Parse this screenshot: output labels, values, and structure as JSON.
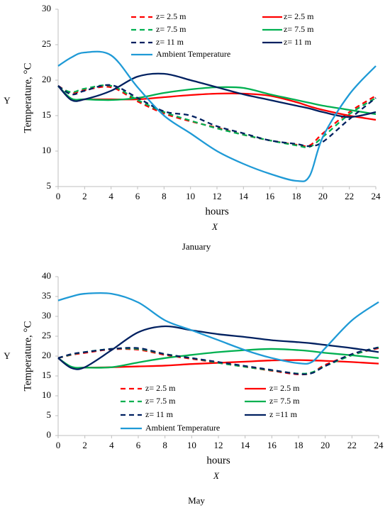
{
  "chart_data": [
    {
      "type": "line",
      "title": "January",
      "x_label": "hours",
      "y_label": "Temperature, °C",
      "x_axis_name": "X",
      "y_axis_name": "Y",
      "x": [
        0,
        1,
        2,
        4,
        6,
        8,
        10,
        12,
        14,
        16,
        18,
        19,
        20,
        22,
        24
      ],
      "xlim": [
        0,
        24
      ],
      "xticks": [
        0,
        2,
        4,
        6,
        8,
        10,
        12,
        14,
        16,
        18,
        20,
        22,
        24
      ],
      "ylim": [
        5,
        30
      ],
      "yticks": [
        5,
        10,
        15,
        20,
        25,
        30
      ],
      "grid": false,
      "legend": "top",
      "series": [
        {
          "name": "z= 2.5 m",
          "color": "#ff0000",
          "dashed": true,
          "values": [
            19.2,
            18.2,
            18.6,
            19,
            17,
            15.3,
            14.2,
            13.3,
            12.3,
            11.5,
            10.9,
            10.8,
            12.5,
            15.5,
            17.8
          ]
        },
        {
          "name": "z= 2.5 m",
          "color": "#ff0000",
          "dashed": false,
          "values": [
            19.2,
            17.3,
            17.3,
            17.3,
            17.3,
            17.6,
            17.9,
            18.1,
            18.1,
            17.8,
            16.9,
            16.3,
            15.8,
            15,
            14.4
          ]
        },
        {
          "name": "z= 7.5 m",
          "color": "#00b050",
          "dashed": true,
          "values": [
            19.1,
            18.3,
            18.8,
            19.2,
            17.2,
            15.5,
            14.3,
            13.2,
            12.3,
            11.5,
            10.8,
            10.6,
            12,
            15.2,
            17.5
          ]
        },
        {
          "name": "z= 7.5 m",
          "color": "#00b050",
          "dashed": false,
          "values": [
            19.2,
            17.4,
            17.3,
            17.2,
            17.5,
            18.2,
            18.7,
            19,
            18.9,
            18,
            17.2,
            16.8,
            16.4,
            15.8,
            15.2
          ]
        },
        {
          "name": "z= 11 m",
          "color": "#002060",
          "dashed": true,
          "values": [
            19.2,
            18,
            18.5,
            19.3,
            17.5,
            15.6,
            15,
            13.5,
            12.5,
            11.5,
            11,
            10.7,
            11.3,
            14.5,
            17.5
          ]
        },
        {
          "name": "z= 11 m",
          "color": "#002060",
          "dashed": false,
          "values": [
            19.2,
            17.2,
            17.3,
            18.5,
            20.5,
            20.9,
            20,
            19,
            18,
            17.2,
            16.4,
            16,
            15.5,
            14.8,
            15.5
          ]
        },
        {
          "name": "Ambient Temperature",
          "color": "#1f9ad6",
          "dashed": false,
          "values": [
            22,
            23.2,
            23.9,
            23.5,
            19,
            15,
            12.5,
            10,
            8.2,
            6.8,
            5.8,
            6.5,
            12,
            18,
            22
          ]
        }
      ]
    },
    {
      "type": "line",
      "title": "May",
      "x_label": "hours",
      "y_label": "Temperature, °C",
      "x_axis_name": "X",
      "y_axis_name": "Y",
      "x": [
        0,
        1,
        2,
        4,
        6,
        8,
        10,
        12,
        14,
        16,
        18,
        19,
        20,
        22,
        24
      ],
      "xlim": [
        0,
        24
      ],
      "xticks": [
        0,
        2,
        4,
        6,
        8,
        10,
        12,
        14,
        16,
        18,
        20,
        22,
        24
      ],
      "ylim": [
        0,
        40
      ],
      "yticks": [
        0,
        5,
        10,
        15,
        20,
        25,
        30,
        35,
        40
      ],
      "grid": false,
      "legend": "bottom",
      "series": [
        {
          "name": "z= 2.5 m",
          "color": "#ff0000",
          "dashed": true,
          "values": [
            19.5,
            20.3,
            20.8,
            21.7,
            21.6,
            20.3,
            19.3,
            18.3,
            17.3,
            16.3,
            15.4,
            15.8,
            17.8,
            20.3,
            22
          ]
        },
        {
          "name": "z= 2.5 m",
          "color": "#ff0000",
          "dashed": false,
          "values": [
            19.5,
            17.2,
            17.1,
            17.2,
            17.4,
            17.6,
            18,
            18.3,
            18.6,
            18.9,
            19,
            18.9,
            18.8,
            18.5,
            18.1
          ]
        },
        {
          "name": "z= 7.5 m",
          "color": "#00b050",
          "dashed": true,
          "values": [
            19.5,
            20.4,
            21,
            21.8,
            21.8,
            20.5,
            19.5,
            18.3,
            17.3,
            16.4,
            15.6,
            15.9,
            17.5,
            20.2,
            22.2
          ]
        },
        {
          "name": "z= 7.5 m",
          "color": "#00b050",
          "dashed": false,
          "values": [
            19.5,
            17.3,
            17.1,
            17.2,
            18.4,
            19.5,
            20.3,
            21,
            21.5,
            21.8,
            21.5,
            21.2,
            20.8,
            20.2,
            19.5
          ]
        },
        {
          "name": "z= 11 m",
          "color": "#002060",
          "dashed": true,
          "values": [
            19.5,
            20.5,
            21,
            21.8,
            22,
            20.5,
            19.5,
            18.5,
            17.5,
            16.5,
            15.5,
            15.7,
            17.5,
            20.5,
            22.2
          ]
        },
        {
          "name": "z =11 m",
          "color": "#002060",
          "dashed": false,
          "values": [
            19.5,
            17,
            17.2,
            21.5,
            26,
            27.5,
            26.5,
            25.5,
            24.8,
            24,
            23.5,
            23.2,
            22.8,
            22,
            21
          ]
        },
        {
          "name": "Ambient Temperature",
          "color": "#1f9ad6",
          "dashed": false,
          "values": [
            34,
            35,
            35.7,
            35.7,
            33.5,
            29,
            26.5,
            24,
            21.5,
            19.5,
            18.2,
            18.5,
            22,
            29,
            33.6
          ]
        }
      ]
    }
  ]
}
